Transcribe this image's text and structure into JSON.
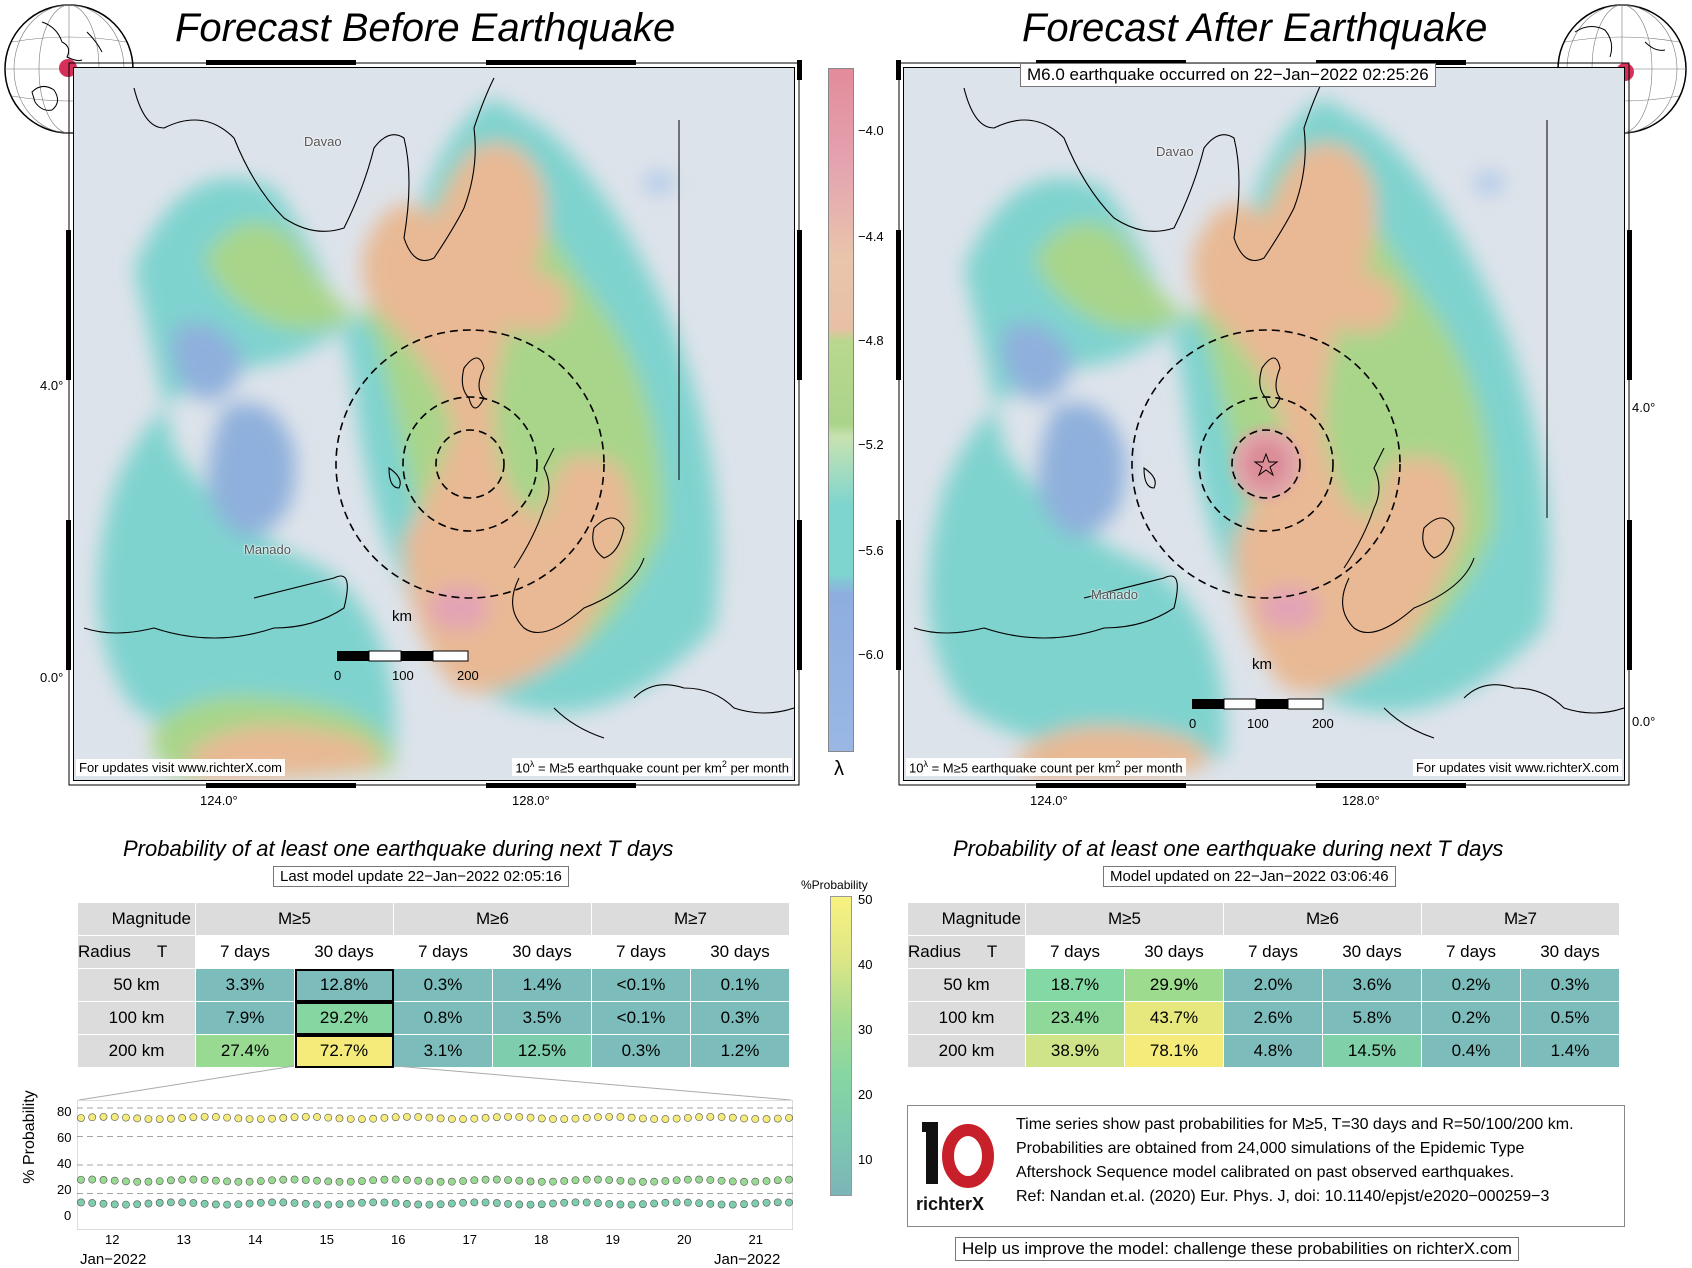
{
  "left": {
    "title": "Forecast Before Earthquake",
    "cities": [
      "Davao",
      "Manado"
    ],
    "scale": {
      "unit": "km",
      "ticks": [
        "0",
        "100",
        "200"
      ]
    },
    "lat_labels": [
      "4.0°",
      "0.0°"
    ],
    "lon_labels": [
      "124.0°",
      "128.0°"
    ],
    "update_note": "For updates visit www.richterX.com",
    "legend_note": "10λ = M≥5 earthquake count per km² per month",
    "table_title": "Probability of at least one earthquake during next T days",
    "table_subtitle": "Last model update 22−Jan−2022 02:05:16",
    "highlight_value": "72.7%"
  },
  "right": {
    "title": "Forecast After Earthquake",
    "event_note": "M6.0 earthquake occurred on 22−Jan−2022 02:25:26",
    "cities": [
      "Davao",
      "Manado"
    ],
    "scale": {
      "unit": "km",
      "ticks": [
        "0",
        "100",
        "200"
      ]
    },
    "lat_labels": [
      "4.0°",
      "0.0°"
    ],
    "lon_labels": [
      "124.0°",
      "128.0°"
    ],
    "update_note": "For updates visit www.richterX.com",
    "legend_note": "10λ = M≥5 earthquake count per km² per month",
    "table_title": "Probability of at least one earthquake during next T days",
    "table_subtitle": "Model updated on 22−Jan−2022 03:06:46"
  },
  "colorbar": {
    "label": "λ",
    "ticks": [
      "−4.0",
      "−4.4",
      "−4.8",
      "−5.2",
      "−5.6",
      "−6.0"
    ],
    "colors": [
      "#e4a3b0",
      "#e8c0a6",
      "#aad48a",
      "#7ed5cf",
      "#8eaee0"
    ]
  },
  "prob_colorbar": {
    "label": "%Probability",
    "ticks": [
      "50",
      "40",
      "30",
      "20",
      "10"
    ]
  },
  "table_headers": {
    "magnitude": "Magnitude",
    "radius": "Radius",
    "t": "T",
    "mags": [
      "M≥5",
      "M≥6",
      "M≥7"
    ],
    "periods": [
      "7 days",
      "30 days",
      "7 days",
      "30 days",
      "7 days",
      "30 days"
    ]
  },
  "table_before": {
    "rows": [
      {
        "radius": "50 km",
        "values": [
          "3.3%",
          "12.8%",
          "0.3%",
          "1.4%",
          "<0.1%",
          "0.1%"
        ],
        "colors": [
          "#7cbcbb",
          "#7cbcbb",
          "#7cbcbb",
          "#7cbcbb",
          "#7cbcbb",
          "#7cbcbb"
        ]
      },
      {
        "radius": "100 km",
        "values": [
          "7.9%",
          "29.2%",
          "0.8%",
          "3.5%",
          "<0.1%",
          "0.3%"
        ],
        "colors": [
          "#7cbcbb",
          "#86d6a2",
          "#7cbcbb",
          "#7cbcbb",
          "#7cbcbb",
          "#7cbcbb"
        ]
      },
      {
        "radius": "200 km",
        "values": [
          "27.4%",
          "72.7%",
          "3.1%",
          "12.5%",
          "0.3%",
          "1.2%"
        ],
        "colors": [
          "#99da92",
          "#f4eb7a",
          "#7cbcbb",
          "#7ecdad",
          "#7cbcbb",
          "#7cbcbb"
        ]
      }
    ]
  },
  "table_after": {
    "rows": [
      {
        "radius": "50 km",
        "values": [
          "18.7%",
          "29.9%",
          "2.0%",
          "3.6%",
          "0.2%",
          "0.3%"
        ],
        "colors": [
          "#84d8a3",
          "#9ddc8e",
          "#7cbcbb",
          "#7cbcbb",
          "#7cbcbb",
          "#7cbcbb"
        ]
      },
      {
        "radius": "100 km",
        "values": [
          "23.4%",
          "43.7%",
          "2.6%",
          "5.8%",
          "0.2%",
          "0.5%"
        ],
        "colors": [
          "#8ed99a",
          "#e6e77c",
          "#7cbcbb",
          "#7cbcbb",
          "#7cbcbb",
          "#7cbcbb"
        ]
      },
      {
        "radius": "200 km",
        "values": [
          "38.9%",
          "78.1%",
          "4.8%",
          "14.5%",
          "0.4%",
          "1.4%"
        ],
        "colors": [
          "#cfe488",
          "#f4eb7a",
          "#7cbcbb",
          "#80d1aa",
          "#7cbcbb",
          "#7cbcbb"
        ]
      }
    ]
  },
  "timeseries": {
    "ylabel": "% Probability",
    "yticks": [
      "80",
      "60",
      "40",
      "20",
      "0"
    ],
    "xticks": [
      "12",
      "13",
      "14",
      "15",
      "16",
      "17",
      "18",
      "19",
      "20",
      "21"
    ],
    "x_start_label": "Jan−2022",
    "x_end_label": "Jan−2022"
  },
  "chart_data": {
    "type": "scatter",
    "xlabel": "",
    "ylabel": "% Probability",
    "ylim": [
      0,
      80
    ],
    "xlim_days": [
      11.5,
      22.1
    ],
    "series": [
      {
        "values_approx": 73,
        "color": "#f4eb7a"
      },
      {
        "values_approx": 29,
        "color": "#99da92"
      },
      {
        "values_approx": 13,
        "color": "#7ecdad"
      }
    ]
  },
  "info": {
    "logo_text": "richterX",
    "lines": [
      "Time series show past probabilities for M≥5, T=30 days and R=50/100/200 km.",
      "Probabilities are obtained from 24,000 simulations of the Epidemic Type",
      "Aftershock Sequence model calibrated on past observed earthquakes.",
      "Ref: Nandan et.al. (2020) Eur. Phys. J, doi: 10.1140/epjst/e2020−000259−3"
    ],
    "help": "Help us improve the model: challenge these probabilities on richterX.com"
  }
}
